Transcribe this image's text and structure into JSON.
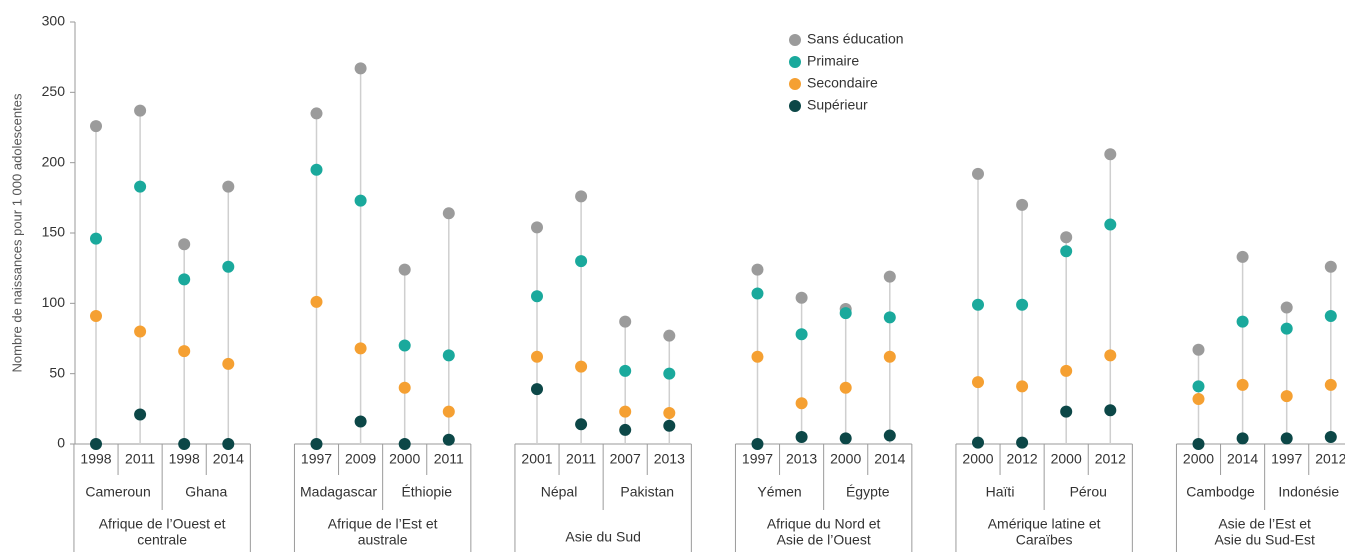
{
  "chart_data": {
    "type": "dot",
    "y_label": "Nombre de naissances pour 1 000 adolescentes",
    "ylim": [
      0,
      300
    ],
    "yticks": [
      0,
      50,
      100,
      150,
      200,
      250,
      300
    ],
    "categories": [
      "1998",
      "2011",
      "1998",
      "2014",
      "1997",
      "2009",
      "2000",
      "2011",
      "2001",
      "2011",
      "2007",
      "2013",
      "1997",
      "2013",
      "2000",
      "2014",
      "2000",
      "2012",
      "2000",
      "2012",
      "2000",
      "2014",
      "1997",
      "2012"
    ],
    "countries": [
      "Cameroun",
      "Ghana",
      "Madagascar",
      "Éthiopie",
      "Népal",
      "Pakistan",
      "Yémen",
      "Égypte",
      "Haïti",
      "Pérou",
      "Cambodge",
      "Indonésie"
    ],
    "regions": [
      {
        "name": [
          "Afrique de l’Ouest et",
          "centrale"
        ]
      },
      {
        "name": [
          "Afrique de l’Est et",
          "australe"
        ]
      },
      {
        "name": [
          "Asie du Sud"
        ]
      },
      {
        "name": [
          "Afrique du Nord et",
          "Asie de l’Ouest"
        ]
      },
      {
        "name": [
          "Amérique latine et",
          "Caraïbes"
        ]
      },
      {
        "name": [
          "Asie de l’Est et",
          "Asie du Sud-Est"
        ]
      }
    ],
    "legend_position": "top",
    "series": [
      {
        "name": "Sans éducation",
        "color": "#9b9b9b",
        "values": [
          226,
          237,
          142,
          183,
          235,
          267,
          124,
          164,
          154,
          176,
          87,
          77,
          124,
          104,
          96,
          119,
          192,
          170,
          147,
          206,
          67,
          133,
          97,
          126
        ]
      },
      {
        "name": "Primaire",
        "color": "#1aa99c",
        "values": [
          146,
          183,
          117,
          126,
          195,
          173,
          70,
          63,
          105,
          130,
          52,
          50,
          107,
          78,
          93,
          90,
          99,
          99,
          137,
          156,
          41,
          87,
          82,
          91
        ]
      },
      {
        "name": "Secondaire",
        "color": "#f5a032",
        "values": [
          91,
          80,
          66,
          57,
          101,
          68,
          40,
          23,
          62,
          55,
          23,
          22,
          62,
          29,
          40,
          62,
          44,
          41,
          52,
          63,
          32,
          42,
          34,
          42
        ]
      },
      {
        "name": "Supérieur",
        "color": "#0c4747",
        "values": [
          0,
          21,
          0,
          0,
          0,
          16,
          0,
          3,
          39,
          14,
          10,
          13,
          0,
          5,
          4,
          6,
          1,
          1,
          23,
          24,
          0,
          4,
          4,
          5
        ]
      }
    ]
  }
}
